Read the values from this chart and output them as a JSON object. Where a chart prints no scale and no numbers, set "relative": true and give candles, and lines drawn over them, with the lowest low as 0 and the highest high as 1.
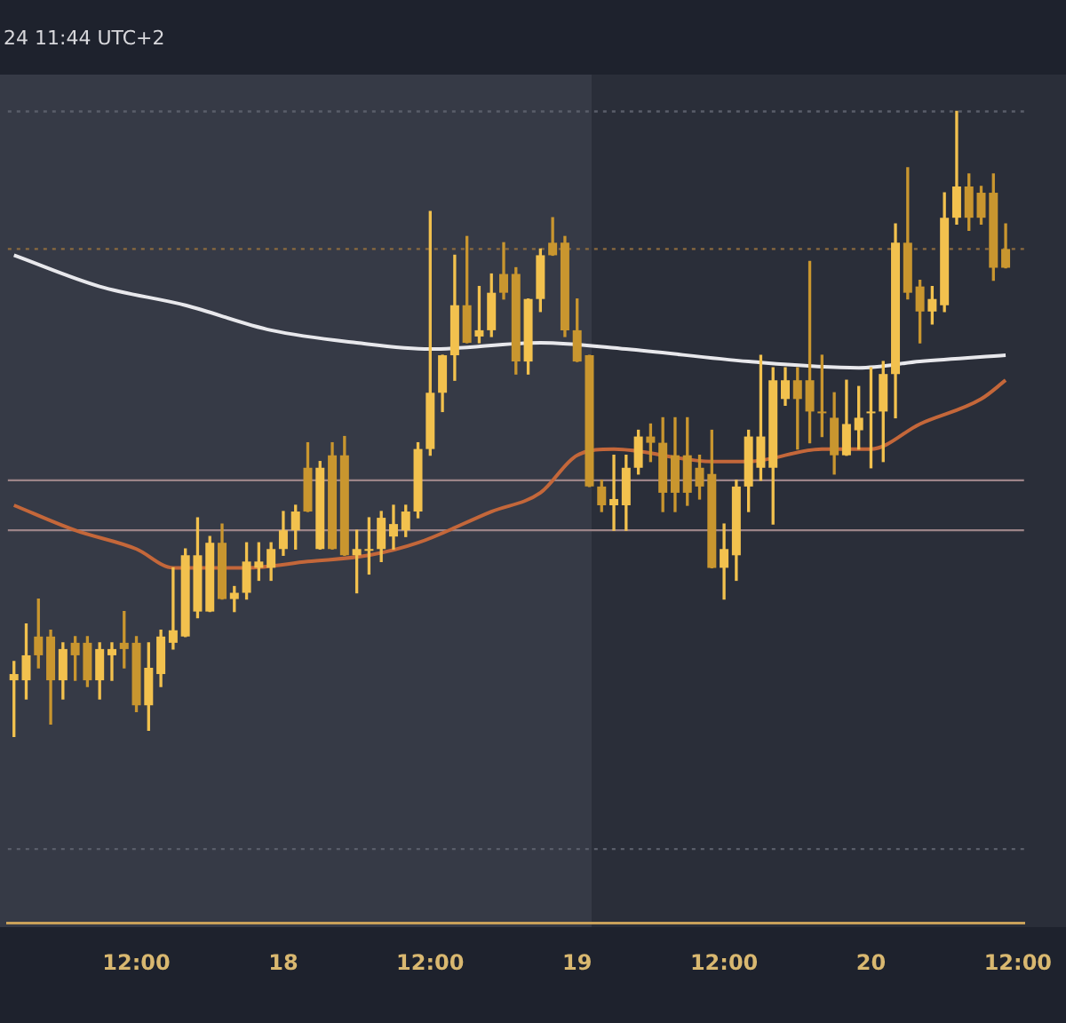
{
  "chart_data": {
    "type": "candlestick",
    "relative": true,
    "colors": [
      "#f2c14e",
      "#f2c14e",
      "#c9962f",
      "#c9962f",
      "#f2c14e",
      "#c9962f",
      "#c9962f",
      "#f2c14e",
      "#f2c14e",
      "#c9962f",
      "#c9962f",
      "#f2c14e",
      "#f2c14e",
      "#f2c14e",
      "#f2c14e",
      "#f2c14e",
      "#f2c14e",
      "#c9962f",
      "#f2c14e",
      "#f2c14e",
      "#f2c14e",
      "#f2c14e",
      "#f2c14e",
      "#f2c14e",
      "#c9962f",
      "#f2c14e",
      "#c9962f",
      "#c9962f",
      "#f2c14e",
      "#f2c14e",
      "#f2c14e",
      "#f2c14e",
      "#f2c14e",
      "#f2c14e",
      "#f2c14e",
      "#f2c14e",
      "#f2c14e",
      "#c9962f",
      "#f2c14e",
      "#f2c14e",
      "#c9962f",
      "#c9962f",
      "#f2c14e",
      "#f2c14e",
      "#c9962f",
      "#c9962f",
      "#c9962f",
      "#c9962f",
      "#c9962f",
      "#f2c14e",
      "#f2c14e",
      "#f2c14e",
      "#c9962f",
      "#c9962f",
      "#c9962f",
      "#c9962f",
      "#c9962f",
      "#c9962f",
      "#f2c14e",
      "#f2c14e",
      "#f2c14e",
      "#f2c14e",
      "#f2c14e",
      "#f2c14e",
      "#c9962f",
      "#c9962f",
      "#c9962f",
      "#c9962f",
      "#f2c14e",
      "#f2c14e",
      "#f2c14e",
      "#f2c14e",
      "#f2c14e",
      "#c9962f",
      "#c9962f",
      "#f2c14e",
      "#f2c14e",
      "#f2c14e",
      "#c9962f",
      "#c9962f",
      "#c9962f",
      "#c9962f",
      null
    ],
    "annotations": [
      "24 11:44 UTC+2"
    ],
    "categories": [
      null,
      null,
      null,
      null,
      null,
      null,
      null,
      null,
      null,
      null,
      "12:00",
      null,
      null,
      null,
      null,
      null,
      null,
      null,
      null,
      null,
      null,
      null,
      "18",
      null,
      null,
      null,
      null,
      null,
      null,
      null,
      null,
      null,
      null,
      null,
      "12:00",
      null,
      null,
      null,
      null,
      null,
      null,
      null,
      null,
      null,
      null,
      null,
      "19",
      null,
      null,
      null,
      null,
      null,
      null,
      null,
      null,
      null,
      null,
      null,
      "12:00",
      null,
      null,
      null,
      null,
      null,
      null,
      null,
      null,
      null,
      null,
      null,
      "20",
      null,
      null,
      null,
      null,
      null,
      null,
      null,
      null,
      null,
      null,
      null,
      "12:00"
    ],
    "ohlc": [
      [
        0.09,
        0.12,
        0,
        0.1
      ],
      [
        0.09,
        0.18,
        0.06,
        0.13
      ],
      [
        0.16,
        0.22,
        0.11,
        0.13
      ],
      [
        0.16,
        0.17,
        0.02,
        0.09
      ],
      [
        0.09,
        0.15,
        0.06,
        0.14
      ],
      [
        0.15,
        0.16,
        0.09,
        0.13
      ],
      [
        0.15,
        0.16,
        0.08,
        0.09
      ],
      [
        0.09,
        0.15,
        0.06,
        0.14
      ],
      [
        0.13,
        0.15,
        0.09,
        0.14
      ],
      [
        0.15,
        0.2,
        0.11,
        0.14
      ],
      [
        0.15,
        0.16,
        0.04,
        0.05
      ],
      [
        0.05,
        0.15,
        0.01,
        0.11
      ],
      [
        0.1,
        0.17,
        0.08,
        0.16
      ],
      [
        0.15,
        0.27,
        0.14,
        0.17
      ],
      [
        0.16,
        0.3,
        0.16,
        0.29
      ],
      [
        0.2,
        0.35,
        0.19,
        0.29
      ],
      [
        0.2,
        0.32,
        0.2,
        0.31
      ],
      [
        0.31,
        0.34,
        0.22,
        0.22
      ],
      [
        0.22,
        0.24,
        0.2,
        0.23
      ],
      [
        0.23,
        0.31,
        0.22,
        0.28
      ],
      [
        0.27,
        0.31,
        0.25,
        0.28
      ],
      [
        0.27,
        0.31,
        0.25,
        0.3
      ],
      [
        0.3,
        0.36,
        0.29,
        0.33
      ],
      [
        0.33,
        0.37,
        0.3,
        0.36
      ],
      [
        0.43,
        0.47,
        0.36,
        0.36
      ],
      [
        0.3,
        0.44,
        0.3,
        0.43
      ],
      [
        0.45,
        0.47,
        0.3,
        0.3
      ],
      [
        0.45,
        0.48,
        0.29,
        0.29
      ],
      [
        0.29,
        0.33,
        0.23,
        0.3
      ],
      [
        0.3,
        0.35,
        0.26,
        0.3
      ],
      [
        0.3,
        0.36,
        0.28,
        0.35
      ],
      [
        0.32,
        0.37,
        0.3,
        0.34
      ],
      [
        0.33,
        0.37,
        0.32,
        0.36
      ],
      [
        0.36,
        0.47,
        0.35,
        0.46
      ],
      [
        0.46,
        0.84,
        0.45,
        0.55
      ],
      [
        0.55,
        0.61,
        0.52,
        0.61
      ],
      [
        0.61,
        0.77,
        0.57,
        0.69
      ],
      [
        0.69,
        0.8,
        0.63,
        0.63
      ],
      [
        0.64,
        0.72,
        0.63,
        0.65
      ],
      [
        0.65,
        0.74,
        0.64,
        0.71
      ],
      [
        0.74,
        0.79,
        0.7,
        0.71
      ],
      [
        0.74,
        0.75,
        0.58,
        0.6
      ],
      [
        0.6,
        0.7,
        0.58,
        0.7
      ],
      [
        0.7,
        0.78,
        0.68,
        0.77
      ],
      [
        0.79,
        0.83,
        0.77,
        0.77
      ],
      [
        0.79,
        0.8,
        0.64,
        0.65
      ],
      [
        0.65,
        0.7,
        0.6,
        0.6
      ],
      [
        0.61,
        0.61,
        0.4,
        0.4
      ],
      [
        0.4,
        0.41,
        0.36,
        0.37
      ],
      [
        0.37,
        0.45,
        0.33,
        0.38
      ],
      [
        0.37,
        0.45,
        0.33,
        0.43
      ],
      [
        0.43,
        0.49,
        0.42,
        0.48
      ],
      [
        0.48,
        0.5,
        0.44,
        0.47
      ],
      [
        0.47,
        0.51,
        0.36,
        0.39
      ],
      [
        0.45,
        0.51,
        0.36,
        0.39
      ],
      [
        0.45,
        0.51,
        0.37,
        0.39
      ],
      [
        0.43,
        0.45,
        0.38,
        0.4
      ],
      [
        0.42,
        0.49,
        0.27,
        0.27
      ],
      [
        0.27,
        0.34,
        0.22,
        0.3
      ],
      [
        0.29,
        0.41,
        0.25,
        0.4
      ],
      [
        0.4,
        0.49,
        0.36,
        0.48
      ],
      [
        0.43,
        0.61,
        0.41,
        0.48
      ],
      [
        0.43,
        0.59,
        0.34,
        0.57
      ],
      [
        0.54,
        0.59,
        0.53,
        0.57
      ],
      [
        0.57,
        0.59,
        0.46,
        0.54
      ],
      [
        0.57,
        0.76,
        0.47,
        0.52
      ],
      [
        0.52,
        0.61,
        0.48,
        0.52
      ],
      [
        0.51,
        0.55,
        0.42,
        0.45
      ],
      [
        0.45,
        0.57,
        0.45,
        0.5
      ],
      [
        0.49,
        0.56,
        0.46,
        0.51
      ],
      [
        0.52,
        0.59,
        0.43,
        0.52
      ],
      [
        0.52,
        0.6,
        0.44,
        0.58
      ],
      [
        0.58,
        0.82,
        0.51,
        0.79
      ],
      [
        0.79,
        0.91,
        0.7,
        0.71
      ],
      [
        0.72,
        0.73,
        0.63,
        0.68
      ],
      [
        0.68,
        0.72,
        0.66,
        0.7
      ],
      [
        0.69,
        0.87,
        0.68,
        0.83
      ],
      [
        0.83,
        1,
        0.82,
        0.88
      ],
      [
        0.88,
        0.9,
        0.81,
        0.83
      ],
      [
        0.87,
        0.88,
        0.82,
        0.83
      ],
      [
        0.87,
        0.9,
        0.73,
        0.75
      ],
      [
        0.78,
        0.82,
        0.75,
        0.75
      ],
      null
    ],
    "series": [
      {
        "type": "line",
        "color": "#e8e8ec",
        "values": [
          0.77,
          null,
          null,
          null,
          null,
          null,
          null,
          0.72,
          null,
          null,
          null,
          null,
          null,
          null,
          0.69,
          null,
          null,
          null,
          null,
          null,
          null,
          0.65,
          null,
          null,
          null,
          null,
          null,
          null,
          0.63,
          null,
          null,
          null,
          null,
          null,
          0.62,
          null,
          null,
          null,
          null,
          null,
          null,
          null,
          null,
          0.63,
          null,
          null,
          null,
          null,
          null,
          null,
          0.62,
          null,
          null,
          null,
          null,
          null,
          null,
          null,
          null,
          null,
          0.6,
          null,
          null,
          null,
          null,
          null,
          null,
          null,
          null,
          0.59,
          null,
          null,
          null,
          null,
          0.6,
          null,
          null,
          null,
          null,
          null,
          null,
          0.61,
          null
        ]
      },
      {
        "type": "line",
        "color": "#c4673a",
        "values": [
          0.37,
          null,
          null,
          null,
          null,
          0.33,
          null,
          null,
          null,
          null,
          0.3,
          null,
          null,
          0.27,
          null,
          null,
          null,
          null,
          null,
          0.27,
          null,
          null,
          null,
          null,
          0.28,
          null,
          null,
          null,
          null,
          0.29,
          null,
          null,
          null,
          0.31,
          null,
          null,
          null,
          null,
          null,
          0.36,
          null,
          null,
          null,
          0.39,
          null,
          null,
          0.45,
          null,
          null,
          0.46,
          null,
          null,
          null,
          null,
          null,
          null,
          null,
          0.44,
          null,
          null,
          0.44,
          null,
          null,
          null,
          null,
          null,
          0.46,
          null,
          null,
          null,
          0.46,
          null,
          null,
          null,
          0.5,
          null,
          null,
          null,
          null,
          0.54,
          null,
          0.57,
          null
        ]
      }
    ],
    "ref_lines": [
      {
        "axis": "y",
        "value": 1,
        "color": "#5a5e6a",
        "line_style": "dotted"
      },
      {
        "axis": "y",
        "value": 0.78,
        "color": "#8a6a3e",
        "line_style": "dotted"
      },
      {
        "axis": "y",
        "value": 0.41,
        "color": "#9c8488",
        "line_style": "solid"
      },
      {
        "axis": "y",
        "value": 0.33,
        "color": "#9c8488",
        "line_style": "solid"
      },
      {
        "axis": "y",
        "value": -0.18,
        "color": "#5a5e6a",
        "line_style": "dotted"
      }
    ]
  }
}
